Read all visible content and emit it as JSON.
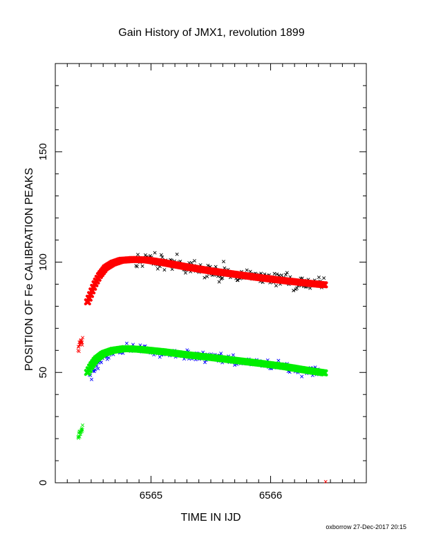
{
  "chart_data": {
    "type": "scatter",
    "title": "Gain History of JMX1, revolution 1899",
    "xlabel": "TIME IN IJD",
    "ylabel": "POSITION OF Fe CALIBRATION PEAKS",
    "xlim": [
      6564.2,
      6566.8
    ],
    "ylim": [
      0,
      190
    ],
    "x_ticks": [
      6565,
      6566
    ],
    "y_ticks": [
      0,
      50,
      100,
      150
    ],
    "grid": false,
    "legend": "none",
    "footer": "oxborrow 27-Dec-2017 20:15",
    "series": [
      {
        "color": "#000000",
        "marker": "x",
        "start": 6564.87,
        "end": 6566.45,
        "trend": [
          [
            6564.87,
            102.5
          ],
          [
            6564.96,
            101.7
          ],
          [
            6565.1,
            100.0
          ],
          [
            6565.3,
            98.2
          ],
          [
            6565.5,
            96.2
          ],
          [
            6565.7,
            95.0
          ],
          [
            6565.9,
            93.5
          ],
          [
            6566.1,
            92.0
          ],
          [
            6566.3,
            90.5
          ],
          [
            6566.45,
            89.2
          ]
        ],
        "scatter": 3.2,
        "count": 170
      },
      {
        "color": "#ff0000",
        "marker": "fit",
        "trend": [
          [
            6564.47,
            82.0
          ],
          [
            6564.5,
            86.0
          ],
          [
            6564.53,
            90.0
          ],
          [
            6564.57,
            94.0
          ],
          [
            6564.62,
            97.5
          ],
          [
            6564.68,
            99.5
          ],
          [
            6564.75,
            100.8
          ],
          [
            6564.85,
            101.2
          ],
          [
            6564.96,
            101.0
          ],
          [
            6565.1,
            99.8
          ],
          [
            6565.3,
            97.8
          ],
          [
            6565.5,
            96.0
          ],
          [
            6565.7,
            94.5
          ],
          [
            6565.9,
            93.0
          ],
          [
            6566.1,
            91.7
          ],
          [
            6566.3,
            90.5
          ],
          [
            6566.45,
            89.7
          ]
        ]
      },
      {
        "color": "#ff0000",
        "marker": "x",
        "start": 6564.39,
        "end": 6564.43,
        "trend": [
          [
            6564.39,
            60.5
          ],
          [
            6564.43,
            64.0
          ]
        ],
        "scatter": 1.8,
        "count": 16
      },
      {
        "color": "#0000ff",
        "marker": "x",
        "start": 6564.48,
        "end": 6566.42,
        "trend": [
          [
            6564.48,
            47.0
          ],
          [
            6564.55,
            52.5
          ],
          [
            6564.62,
            57.0
          ],
          [
            6564.7,
            59.5
          ],
          [
            6564.8,
            61.0
          ],
          [
            6564.95,
            60.5
          ],
          [
            6565.1,
            59.3
          ],
          [
            6565.3,
            58.0
          ],
          [
            6565.5,
            56.8
          ],
          [
            6565.7,
            55.5
          ],
          [
            6565.9,
            54.3
          ],
          [
            6566.1,
            52.7
          ],
          [
            6566.25,
            51.0
          ],
          [
            6566.42,
            50.0
          ]
        ],
        "scatter": 2.0,
        "count": 190
      },
      {
        "color": "#00ee00",
        "marker": "fit",
        "trend": [
          [
            6564.47,
            50.0
          ],
          [
            6564.5,
            53.0
          ],
          [
            6564.54,
            56.0
          ],
          [
            6564.6,
            58.5
          ],
          [
            6564.68,
            60.0
          ],
          [
            6564.78,
            60.8
          ],
          [
            6564.9,
            60.5
          ],
          [
            6565.1,
            59.4
          ],
          [
            6565.3,
            58.0
          ],
          [
            6565.5,
            56.8
          ],
          [
            6565.7,
            55.5
          ],
          [
            6565.9,
            54.2
          ],
          [
            6566.1,
            52.8
          ],
          [
            6566.3,
            51.0
          ],
          [
            6566.45,
            49.8
          ]
        ]
      },
      {
        "color": "#00ee00",
        "marker": "x",
        "start": 6564.39,
        "end": 6564.43,
        "trend": [
          [
            6564.39,
            20.0
          ],
          [
            6564.43,
            25.0
          ]
        ],
        "scatter": 2.0,
        "count": 16
      },
      {
        "color": "#ff0000",
        "marker": "x",
        "start": 6566.46,
        "end": 6566.46,
        "trend": [
          [
            6566.46,
            0.5
          ],
          [
            6566.46,
            0.5
          ]
        ],
        "scatter": 0,
        "count": 1
      }
    ]
  }
}
